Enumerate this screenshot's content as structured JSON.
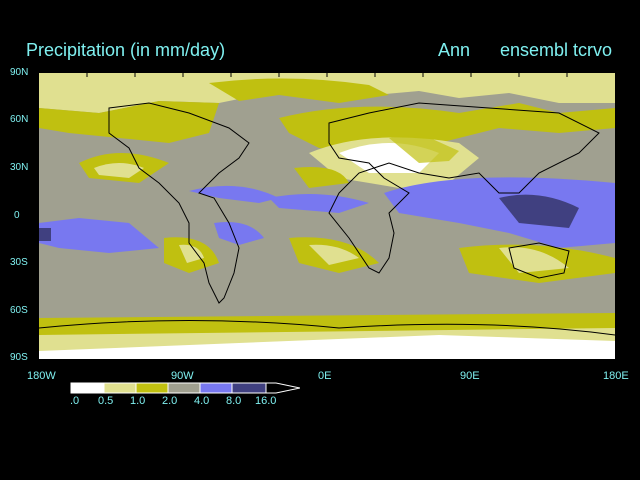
{
  "header": {
    "title": "Precipitation (in mm/day)",
    "season": "Ann",
    "run": "ensembl tcrvo"
  },
  "axes": {
    "lat_labels": [
      "90N",
      "60N",
      "30N",
      "0",
      "30S",
      "60S",
      "90S"
    ],
    "lon_labels": [
      "180W",
      "90W",
      "0E",
      "90E",
      "180E"
    ]
  },
  "legend": {
    "labels": [
      ".0",
      "0.5",
      "1.0",
      "2.0",
      "4.0",
      "8.0",
      "16.0"
    ],
    "colors": [
      "#ffffff",
      "#e0e090",
      "#c0c010",
      "#a0a090",
      "#7878f0",
      "#404080"
    ]
  }
}
